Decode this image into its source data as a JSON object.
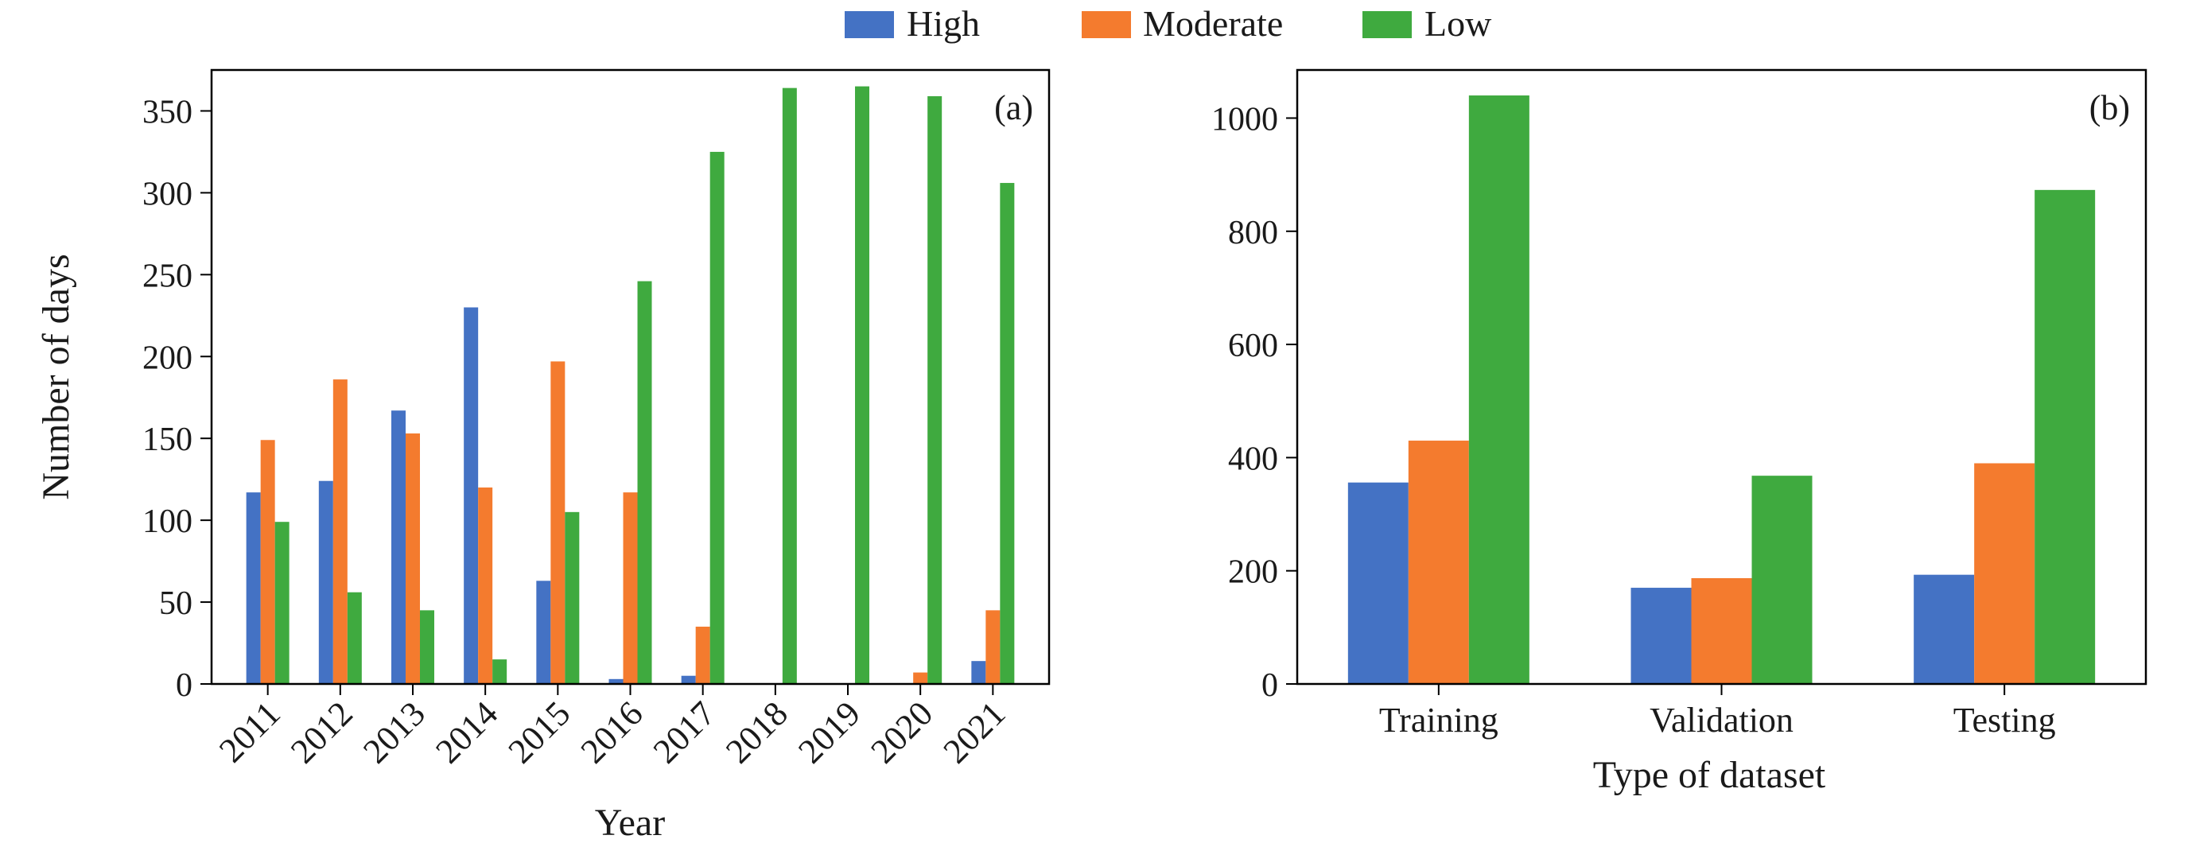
{
  "legend": {
    "entries": [
      {
        "label": "High",
        "color": "#4472C4"
      },
      {
        "label": "Moderate",
        "color": "#F47B2E"
      },
      {
        "label": "Low",
        "color": "#3FAA3F"
      }
    ]
  },
  "chart_data": [
    {
      "type": "bar",
      "panel_label": "(a)",
      "xlabel": "Year",
      "ylabel": "Number of days",
      "categories": [
        "2011",
        "2012",
        "2013",
        "2014",
        "2015",
        "2016",
        "2017",
        "2018",
        "2019",
        "2020",
        "2021"
      ],
      "series": [
        {
          "name": "High",
          "color": "#4472C4",
          "values": [
            117,
            124,
            167,
            230,
            63,
            3,
            5,
            0,
            0,
            0,
            14
          ]
        },
        {
          "name": "Moderate",
          "color": "#F47B2E",
          "values": [
            149,
            186,
            153,
            120,
            197,
            117,
            35,
            0,
            0,
            7,
            45
          ]
        },
        {
          "name": "Low",
          "color": "#3FAA3F",
          "values": [
            99,
            56,
            45,
            15,
            105,
            246,
            325,
            364,
            365,
            359,
            306
          ]
        }
      ],
      "ylim": [
        0,
        375
      ],
      "yticks": [
        0,
        50,
        100,
        150,
        200,
        250,
        300,
        350
      ],
      "x_tick_rotation": "45 degrees",
      "grid": false
    },
    {
      "type": "bar",
      "panel_label": "(b)",
      "xlabel": "Type of dataset",
      "ylabel": "",
      "categories": [
        "Training",
        "Validation",
        "Testing"
      ],
      "series": [
        {
          "name": "High",
          "color": "#4472C4",
          "values": [
            356,
            170,
            193
          ]
        },
        {
          "name": "Moderate",
          "color": "#F47B2E",
          "values": [
            430,
            187,
            390
          ]
        },
        {
          "name": "Low",
          "color": "#3FAA3F",
          "values": [
            1040,
            368,
            873
          ]
        }
      ],
      "ylim": [
        0,
        1085
      ],
      "yticks": [
        0,
        200,
        400,
        600,
        800,
        1000
      ],
      "grid": false
    }
  ]
}
